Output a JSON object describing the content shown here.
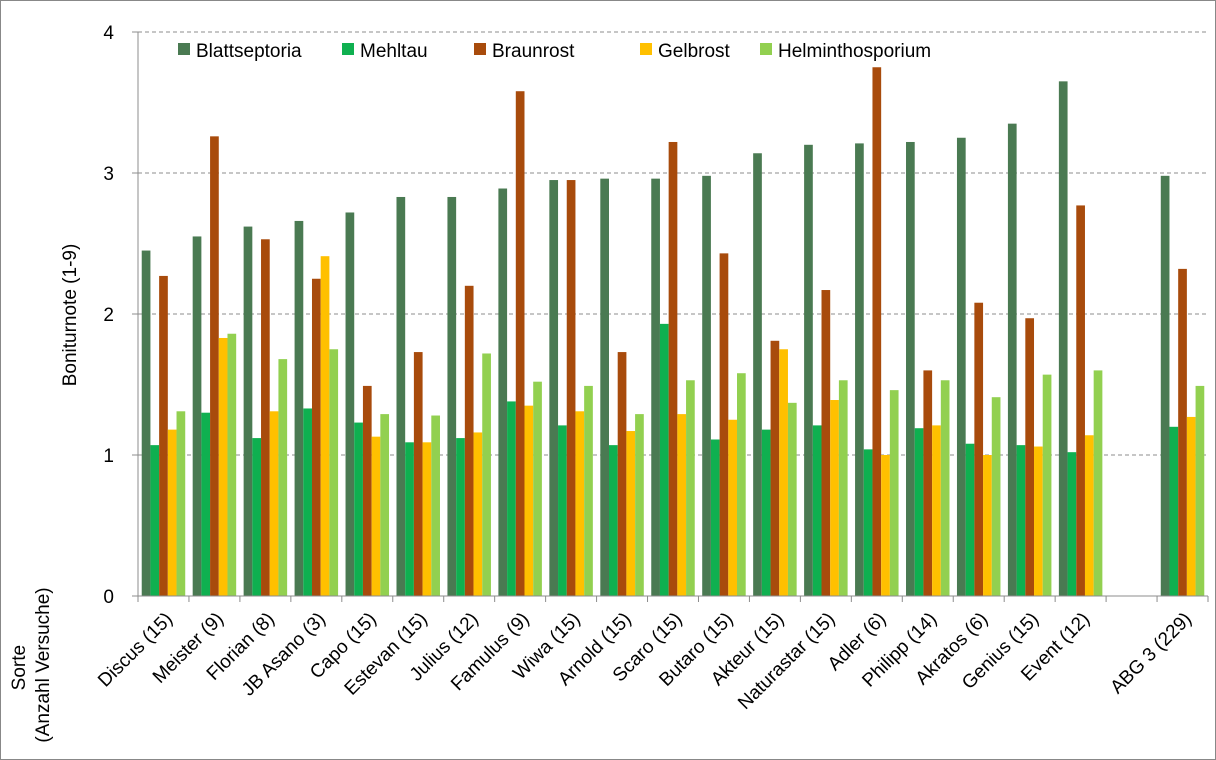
{
  "chart_data": {
    "type": "bar",
    "ylabel": "Boniturnote (1-9)",
    "xlabel_lines": [
      "Sorte",
      "(Anzahl Versuche)"
    ],
    "ylim": [
      0,
      4
    ],
    "yticks": [
      "0",
      "1",
      "2",
      "3",
      "4"
    ],
    "grid": "horizontal dashed",
    "legend_position": "top",
    "categories": [
      "Discus (15)",
      "Meister (9)",
      "Florian (8)",
      "JB Asano (3)",
      "Capo (15)",
      "Estevan (15)",
      "Julius (12)",
      "Famulus (9)",
      "Wiwa (15)",
      "Arnold (15)",
      "Scaro (15)",
      "Butaro (15)",
      "Akteur (15)",
      "Naturastar (15)",
      "Adler (6)",
      "Philipp (14)",
      "Akratos (6)",
      "Genius (15)",
      "Event (12)",
      "",
      "ABG 3 (229)"
    ],
    "series": [
      {
        "name": "Blattseptoria",
        "color": "#4a7a52",
        "values": [
          2.45,
          2.55,
          2.62,
          2.66,
          2.72,
          2.83,
          2.83,
          2.89,
          2.95,
          2.96,
          2.96,
          2.98,
          3.14,
          3.2,
          3.21,
          3.22,
          3.25,
          3.35,
          3.65,
          null,
          2.98
        ]
      },
      {
        "name": "Mehltau",
        "color": "#0fb050",
        "values": [
          1.07,
          1.3,
          1.12,
          1.33,
          1.23,
          1.09,
          1.12,
          1.38,
          1.21,
          1.07,
          1.93,
          1.11,
          1.18,
          1.21,
          1.04,
          1.19,
          1.08,
          1.07,
          1.02,
          null,
          1.2
        ]
      },
      {
        "name": "Braunrost",
        "color": "#a84b0c",
        "values": [
          2.27,
          3.26,
          2.53,
          2.25,
          1.49,
          1.73,
          2.2,
          3.58,
          2.95,
          1.73,
          3.22,
          2.43,
          1.81,
          2.17,
          3.75,
          1.6,
          2.08,
          1.97,
          2.77,
          null,
          2.32
        ]
      },
      {
        "name": "Gelbrost",
        "color": "#ffc000",
        "values": [
          1.18,
          1.83,
          1.31,
          2.41,
          1.13,
          1.09,
          1.16,
          1.35,
          1.31,
          1.17,
          1.29,
          1.25,
          1.75,
          1.39,
          1.0,
          1.21,
          1.0,
          1.06,
          1.14,
          null,
          1.27
        ]
      },
      {
        "name": "Helminthosporium",
        "color": "#92d050",
        "values": [
          1.31,
          1.86,
          1.68,
          1.75,
          1.29,
          1.28,
          1.72,
          1.52,
          1.49,
          1.29,
          1.53,
          1.58,
          1.37,
          1.53,
          1.46,
          1.53,
          1.41,
          1.57,
          1.6,
          null,
          1.49
        ]
      }
    ]
  }
}
